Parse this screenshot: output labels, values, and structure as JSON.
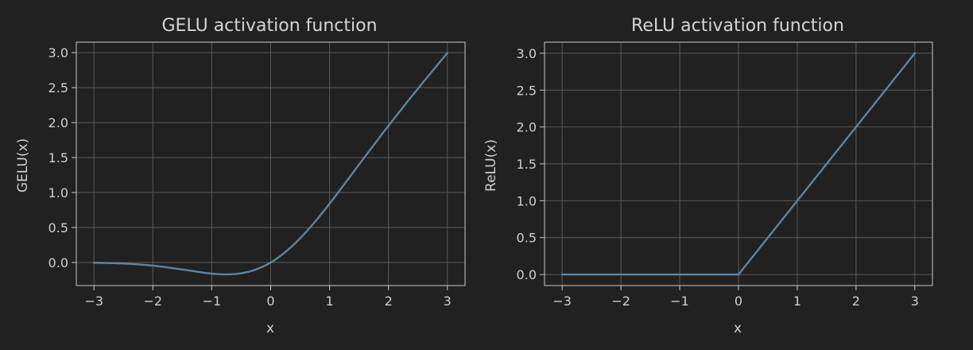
{
  "colors": {
    "background": "#212121",
    "series": "#5b84a3"
  },
  "chart_data": [
    {
      "type": "line",
      "title": "GELU activation function",
      "xlabel": "x",
      "ylabel": "GELU(x)",
      "xlim": [
        -3.3,
        3.3
      ],
      "ylim": [
        -0.33,
        3.15
      ],
      "xticks": [
        -3,
        -2,
        -1,
        0,
        1,
        2,
        3
      ],
      "xtick_labels": [
        "−3",
        "−2",
        "−1",
        "0",
        "1",
        "2",
        "3"
      ],
      "yticks": [
        0,
        0.5,
        1,
        1.5,
        2,
        2.5,
        3
      ],
      "ytick_labels": [
        "0.0",
        "0.5",
        "1.0",
        "1.5",
        "2.0",
        "2.5",
        "3.0"
      ],
      "grid": true,
      "series": [
        {
          "x": [
            -3,
            -2.5,
            -2,
            -1.5,
            -1.25,
            -1,
            -0.75,
            -0.5,
            -0.25,
            0,
            0.25,
            0.5,
            0.75,
            1,
            1.25,
            1.5,
            2,
            2.5,
            3
          ],
          "y": [
            -0.004,
            -0.015,
            -0.045,
            -0.1,
            -0.132,
            -0.159,
            -0.17,
            -0.154,
            -0.1,
            0,
            0.15,
            0.346,
            0.58,
            0.841,
            1.118,
            1.4,
            1.955,
            2.485,
            2.996
          ]
        }
      ]
    },
    {
      "type": "line",
      "title": "ReLU activation function",
      "xlabel": "x",
      "ylabel": "ReLU(x)",
      "xlim": [
        -3.3,
        3.3
      ],
      "ylim": [
        -0.15,
        3.15
      ],
      "xticks": [
        -3,
        -2,
        -1,
        0,
        1,
        2,
        3
      ],
      "xtick_labels": [
        "−3",
        "−2",
        "−1",
        "0",
        "1",
        "2",
        "3"
      ],
      "yticks": [
        0,
        0.5,
        1,
        1.5,
        2,
        2.5,
        3
      ],
      "ytick_labels": [
        "0.0",
        "0.5",
        "1.0",
        "1.5",
        "2.0",
        "2.5",
        "3.0"
      ],
      "grid": true,
      "series": [
        {
          "x": [
            -3,
            0,
            3
          ],
          "y": [
            0,
            0,
            3
          ]
        }
      ]
    }
  ]
}
